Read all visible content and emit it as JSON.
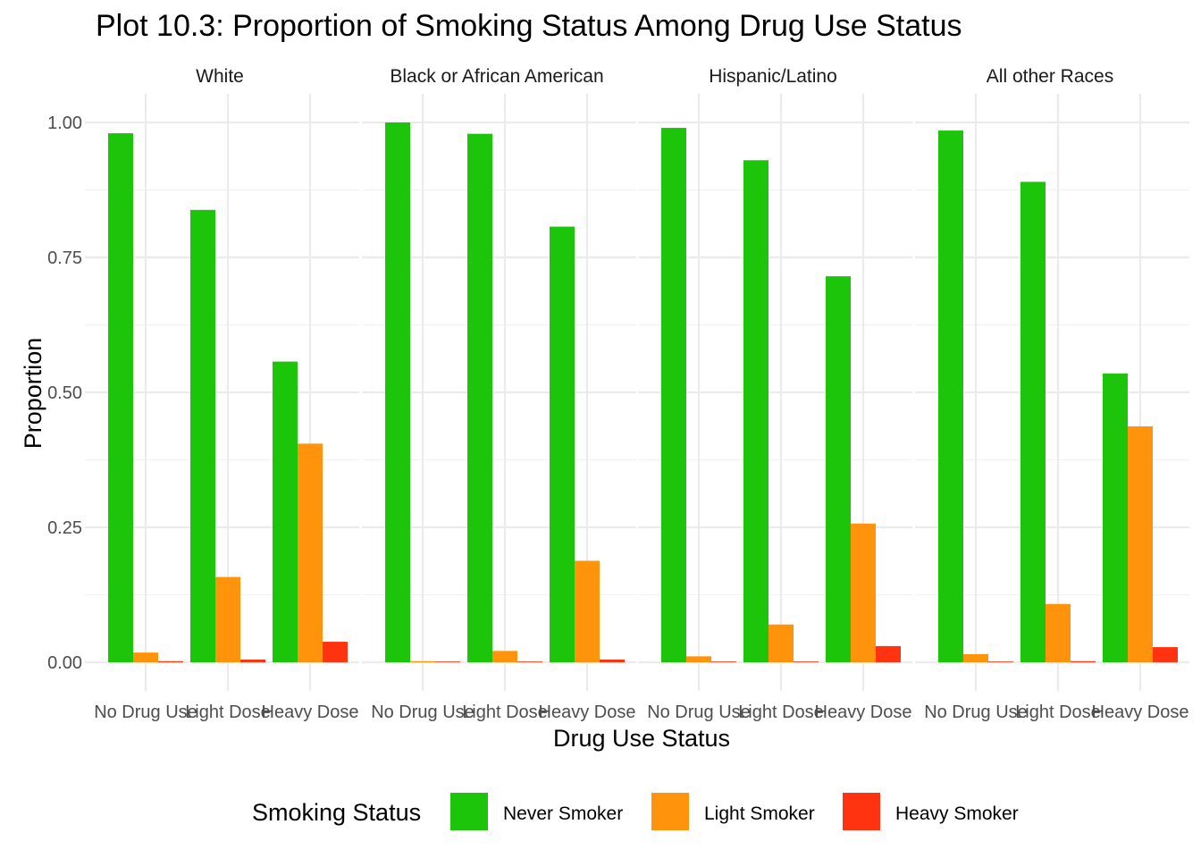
{
  "chart_data": {
    "type": "bar",
    "title": "Plot 10.3: Proportion of Smoking Status Among Drug Use Status",
    "xlabel": "Drug Use Status",
    "ylabel": "Proportion",
    "ylim": [
      0,
      1.0
    ],
    "yticks": [
      "0.00",
      "0.25",
      "0.50",
      "0.75",
      "1.00"
    ],
    "ytick_values": [
      0,
      0.25,
      0.5,
      0.75,
      1.0
    ],
    "categories": [
      "No Drug Use",
      "Light Dose",
      "Heavy Dose"
    ],
    "grid": true,
    "legend": {
      "title": "Smoking Status",
      "position": "bottom",
      "entries": [
        "Never Smoker",
        "Light Smoker",
        "Heavy Smoker"
      ]
    },
    "colors": [
      "#1cc50a",
      "#ff940c",
      "#ff3310"
    ],
    "facets": [
      {
        "label": "White",
        "series": [
          {
            "name": "Never Smoker",
            "values": [
              0.98,
              0.838,
              0.557
            ]
          },
          {
            "name": "Light Smoker",
            "values": [
              0.018,
              0.158,
              0.405
            ]
          },
          {
            "name": "Heavy Smoker",
            "values": [
              0.002,
              0.005,
              0.038
            ]
          }
        ]
      },
      {
        "label": "Black or African American",
        "series": [
          {
            "name": "Never Smoker",
            "values": [
              1.0,
              0.979,
              0.807
            ]
          },
          {
            "name": "Light Smoker",
            "values": [
              0.002,
              0.021,
              0.188
            ]
          },
          {
            "name": "Heavy Smoker",
            "values": [
              0.0,
              0.0,
              0.005
            ]
          }
        ]
      },
      {
        "label": "Hispanic/Latino",
        "series": [
          {
            "name": "Never Smoker",
            "values": [
              0.99,
              0.93,
              0.715
            ]
          },
          {
            "name": "Light Smoker",
            "values": [
              0.011,
              0.07,
              0.257
            ]
          },
          {
            "name": "Heavy Smoker",
            "values": [
              0.0,
              0.0,
              0.03
            ]
          }
        ]
      },
      {
        "label": "All other Races",
        "series": [
          {
            "name": "Never Smoker",
            "values": [
              0.985,
              0.89,
              0.535
            ]
          },
          {
            "name": "Light Smoker",
            "values": [
              0.015,
              0.108,
              0.437
            ]
          },
          {
            "name": "Heavy Smoker",
            "values": [
              0.001,
              0.002,
              0.028
            ]
          }
        ]
      }
    ]
  }
}
